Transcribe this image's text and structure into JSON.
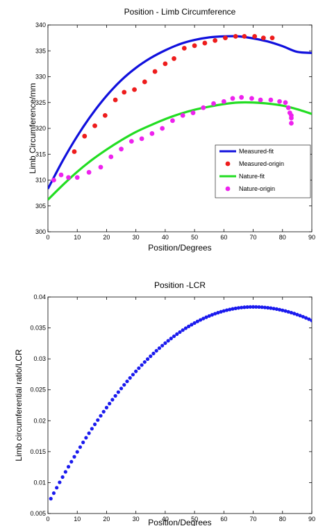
{
  "chart_data": [
    {
      "type": "line",
      "title": "Position - Limb Circumference",
      "xlabel": "Position/Degrees",
      "ylabel": "Limb Circumference/mm",
      "xlim": [
        0,
        90
      ],
      "ylim": [
        300,
        340
      ],
      "xticks": [
        0,
        10,
        20,
        30,
        40,
        50,
        60,
        70,
        80,
        90
      ],
      "yticks": [
        300,
        305,
        310,
        315,
        320,
        325,
        330,
        335,
        340
      ],
      "grid": false,
      "legend_position": "right",
      "series": [
        {
          "name": "Measured-fit",
          "kind": "line",
          "color": "#1010dd",
          "x": [
            0,
            5,
            10,
            15,
            20,
            25,
            30,
            35,
            40,
            45,
            50,
            55,
            60,
            65,
            70,
            75,
            80,
            85,
            90
          ],
          "values": [
            308.3,
            313.7,
            318.5,
            322.7,
            326.3,
            329.3,
            331.7,
            333.6,
            335.1,
            336.3,
            337.1,
            337.6,
            337.8,
            337.8,
            337.4,
            336.8,
            335.9,
            334.8,
            334.6
          ]
        },
        {
          "name": "Measured-origin",
          "kind": "scatter",
          "color": "#ee1c1c",
          "x": [
            9,
            12.5,
            16,
            19.5,
            23,
            26,
            29.5,
            33,
            36.5,
            40,
            43,
            46.5,
            50,
            53.5,
            57,
            60.5,
            64,
            67,
            70.5,
            73.5,
            76.5
          ],
          "values": [
            315.5,
            318.5,
            320.5,
            322.5,
            325.5,
            327,
            327.5,
            329,
            331,
            332.5,
            333.5,
            335.5,
            336,
            336.5,
            337,
            337.5,
            337.8,
            337.8,
            337.8,
            337.5,
            337.5
          ]
        },
        {
          "name": "Nature-fit",
          "kind": "line",
          "color": "#22dd22",
          "x": [
            0,
            5,
            10,
            15,
            20,
            25,
            30,
            35,
            40,
            45,
            50,
            55,
            60,
            65,
            70,
            75,
            80,
            85,
            90
          ],
          "values": [
            306.2,
            309.0,
            311.6,
            313.9,
            315.9,
            317.7,
            319.3,
            320.6,
            321.8,
            322.8,
            323.6,
            324.2,
            324.7,
            325.0,
            325.0,
            324.8,
            324.4,
            323.7,
            322.8
          ]
        },
        {
          "name": "Nature-origin",
          "kind": "scatter",
          "color": "#ee22ee",
          "x": [
            2,
            4.5,
            7,
            10,
            14,
            18,
            21.5,
            25,
            28.5,
            32,
            35.5,
            39,
            42.5,
            46,
            49.5,
            53,
            56.5,
            60,
            63,
            66,
            69.5,
            72.5,
            76,
            79,
            81,
            82,
            82.5,
            83,
            83,
            83
          ],
          "values": [
            310,
            311,
            310.5,
            310.5,
            311.5,
            312.5,
            314.5,
            316,
            317.5,
            318,
            319,
            320,
            321.5,
            322.5,
            323,
            324,
            324.8,
            325.2,
            325.8,
            326,
            325.8,
            325.5,
            325.5,
            325.2,
            325,
            324,
            323,
            322.5,
            322,
            321
          ]
        }
      ]
    },
    {
      "type": "scatter",
      "title": "Position -LCR",
      "xlabel": "Position/Degrees",
      "ylabel": "Limb circumferential ratio/LCR",
      "xlim": [
        0,
        90
      ],
      "ylim": [
        0.005,
        0.04
      ],
      "xticks": [
        0,
        10,
        20,
        30,
        40,
        50,
        60,
        70,
        80,
        90
      ],
      "yticks": [
        0.005,
        0.01,
        0.015,
        0.02,
        0.025,
        0.03,
        0.035,
        0.04
      ],
      "ytick_labels": [
        "0.005",
        "0.01",
        "0.015",
        "0.02",
        "0.025",
        "0.03",
        "0.035",
        "0.04"
      ],
      "grid": false,
      "series": [
        {
          "kind": "scatter",
          "color": "#1a1aee",
          "x_start": 1,
          "x_end": 90,
          "x_step": 1,
          "peak_x": 70,
          "peak_y": 0.0384,
          "y_start": 0.0074,
          "y_end": 0.0362
        }
      ]
    }
  ]
}
